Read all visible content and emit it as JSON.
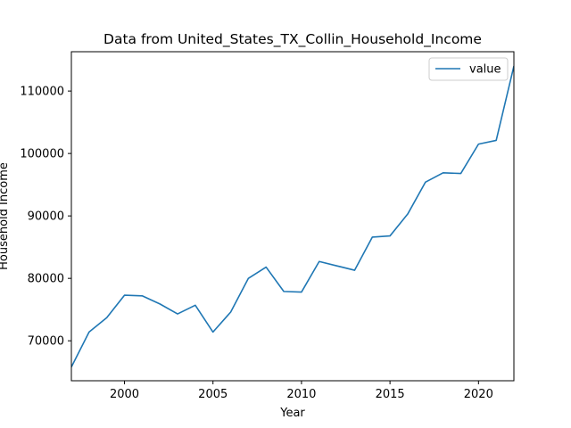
{
  "chart_data": {
    "type": "line",
    "title": "Data from United_States_TX_Collin_Household_Income",
    "xlabel": "Year",
    "ylabel": "Household Income",
    "xlim": [
      1997,
      2022
    ],
    "ylim": [
      63600,
      116300
    ],
    "xticks": [
      2000,
      2005,
      2010,
      2015,
      2020
    ],
    "yticks": [
      70000,
      80000,
      90000,
      100000,
      110000
    ],
    "grid": false,
    "legend_position": "top-right",
    "series": [
      {
        "name": "value",
        "color": "#1f77b4",
        "x": [
          1997,
          1998,
          1999,
          2000,
          2001,
          2002,
          2003,
          2004,
          2005,
          2006,
          2007,
          2008,
          2009,
          2010,
          2011,
          2012,
          2013,
          2014,
          2015,
          2016,
          2017,
          2018,
          2019,
          2020,
          2021,
          2022
        ],
        "values": [
          65800,
          71400,
          73700,
          77300,
          77200,
          75900,
          74300,
          75700,
          71400,
          74600,
          80000,
          81800,
          77900,
          77800,
          82700,
          82000,
          81300,
          86600,
          86800,
          90300,
          95400,
          96900,
          96800,
          101500,
          102100,
          114000
        ]
      }
    ]
  }
}
